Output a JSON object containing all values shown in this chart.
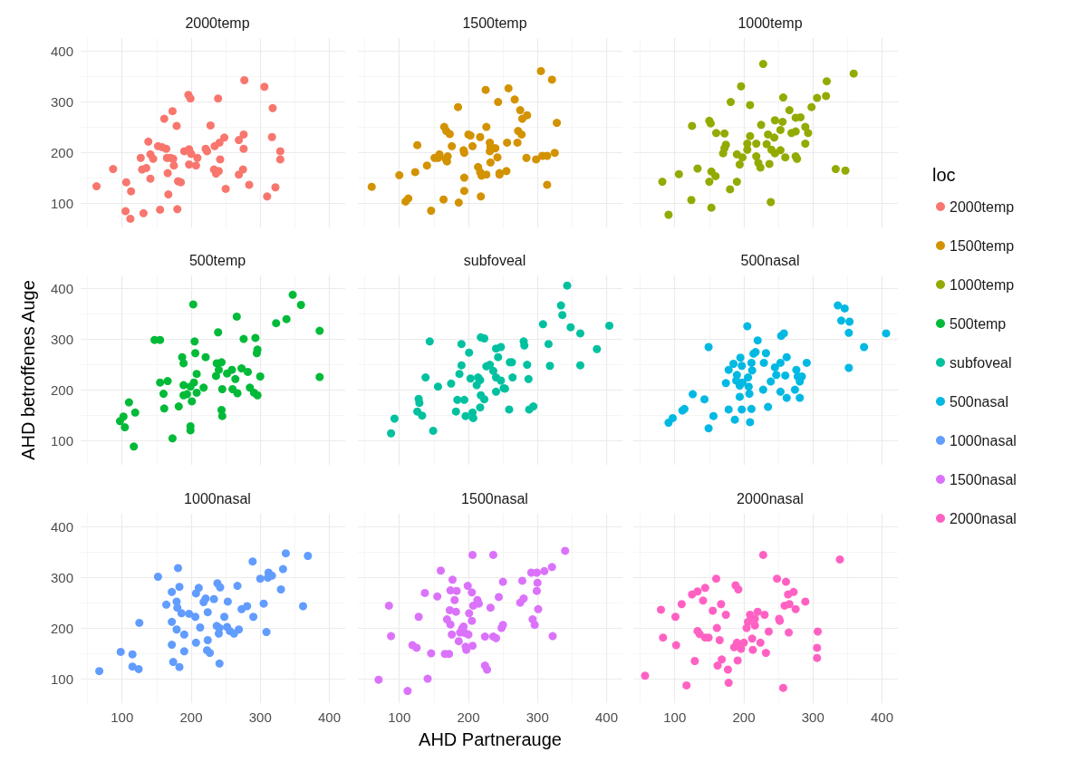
{
  "chart_data": [
    {
      "type": "scatter",
      "title": "2000temp",
      "xlim": [
        40,
        423
      ],
      "ylim": [
        52,
        425
      ],
      "xticks": [
        100,
        200,
        300,
        400
      ],
      "yticks": [
        100,
        200,
        300,
        400
      ],
      "grid": true,
      "marker": "circle",
      "legend": "right",
      "legend_title": "loc",
      "tick_labels": "y",
      "series": [
        {
          "name": "2000temp",
          "color": "#f8766d",
          "x": [
            63,
            87,
            106,
            113,
            105,
            112,
            131,
            155,
            180,
            138,
            127,
            141,
            145,
            129,
            135,
            141,
            152,
            158,
            164,
            161,
            173,
            179,
            165,
            170,
            174,
            175,
            166,
            167,
            181,
            185,
            196,
            199,
            190,
            197,
            200,
            197,
            207,
            209,
            221,
            223,
            234,
            241,
            248,
            228,
            239,
            233,
            236,
            240,
            242,
            250,
            269,
            275,
            269,
            276,
            276,
            277,
            284,
            306,
            310,
            317,
            318,
            322,
            329,
            329
          ],
          "values": [
            133,
            167,
            141,
            123,
            84,
            69,
            80,
            87,
            88,
            221,
            189,
            196,
            187,
            166,
            169,
            148,
            212,
            210,
            207,
            266,
            281,
            252,
            189,
            189,
            187,
            174,
            159,
            117,
            143,
            141,
            313,
            306,
            202,
            206,
            197,
            176,
            174,
            189,
            207,
            202,
            212,
            219,
            229,
            253,
            306,
            166,
            158,
            163,
            186,
            128,
            156,
            166,
            224,
            235,
            207,
            342,
            136,
            329,
            113,
            230,
            287,
            131,
            202,
            186
          ]
        }
      ]
    },
    {
      "type": "scatter",
      "title": "1500temp",
      "xlim": [
        40,
        423
      ],
      "ylim": [
        52,
        425
      ],
      "xticks": [
        100,
        200,
        300,
        400
      ],
      "yticks": [
        100,
        200,
        300,
        400
      ],
      "grid": true,
      "marker": "circle",
      "legend": "right",
      "tick_labels": false,
      "series": [
        {
          "name": "1500temp",
          "color": "#d39200",
          "x": [
            60,
            100,
            109,
            113,
            123,
            126,
            140,
            146,
            151,
            158,
            156,
            165,
            168,
            173,
            167,
            169,
            170,
            176,
            164,
            185,
            186,
            193,
            194,
            194,
            194,
            200,
            203,
            206,
            217,
            218,
            225,
            226,
            214,
            217,
            219,
            226,
            231,
            232,
            231,
            239,
            242,
            232,
            243,
            245,
            245,
            255,
            256,
            258,
            267,
            275,
            278,
            285,
            272,
            277,
            271,
            284,
            298,
            307,
            314,
            325,
            314,
            305,
            321,
            328
          ],
          "values": [
            132,
            155,
            103,
            109,
            161,
            214,
            174,
            85,
            189,
            196,
            189,
            250,
            242,
            236,
            187,
            182,
            192,
            212,
            107,
            289,
            101,
            204,
            199,
            150,
            124,
            235,
            233,
            212,
            230,
            113,
            323,
            250,
            171,
            161,
            154,
            156,
            219,
            210,
            202,
            208,
            190,
            180,
            299,
            159,
            156,
            163,
            219,
            326,
            304,
            283,
            266,
            273,
            242,
            235,
            219,
            189,
            186,
            193,
            193,
            199,
            136,
            360,
            343,
            258
          ]
        }
      ]
    },
    {
      "type": "scatter",
      "title": "1000temp",
      "xlim": [
        40,
        423
      ],
      "ylim": [
        52,
        425
      ],
      "xticks": [
        100,
        200,
        300,
        400
      ],
      "yticks": [
        100,
        200,
        300,
        400
      ],
      "grid": true,
      "marker": "circle",
      "legend": "right",
      "tick_labels": false,
      "series": [
        {
          "name": "1000temp",
          "color": "#93aa00",
          "x": [
            82,
            91,
            106,
            124,
            125,
            133,
            150,
            152,
            153,
            159,
            150,
            153,
            160,
            172,
            174,
            172,
            170,
            181,
            190,
            190,
            180,
            196,
            198,
            194,
            205,
            209,
            205,
            209,
            218,
            218,
            221,
            224,
            225,
            228,
            235,
            233,
            237,
            239,
            240,
            244,
            245,
            245,
            253,
            253,
            256,
            257,
            260,
            266,
            269,
            275,
            282,
            275,
            275,
            277,
            289,
            293,
            289,
            298,
            306,
            319,
            320,
            333,
            347,
            359
          ],
          "values": [
            142,
            77,
            157,
            106,
            252,
            168,
            262,
            257,
            162,
            153,
            142,
            91,
            238,
            237,
            215,
            208,
            198,
            299,
            196,
            142,
            127,
            330,
            190,
            176,
            217,
            232,
            205,
            293,
            217,
            192,
            179,
            170,
            254,
            374,
            235,
            216,
            177,
            102,
            205,
            229,
            263,
            198,
            244,
            204,
            260,
            308,
            190,
            283,
            238,
            268,
            269,
            241,
            192,
            187,
            250,
            238,
            217,
            289,
            307,
            311,
            340,
            167,
            164,
            355
          ]
        }
      ]
    },
    {
      "type": "scatter",
      "title": "500temp",
      "xlim": [
        40,
        423
      ],
      "ylim": [
        52,
        425
      ],
      "xticks": [
        100,
        200,
        300,
        400
      ],
      "yticks": [
        100,
        200,
        300,
        400
      ],
      "grid": true,
      "marker": "circle",
      "legend": "right",
      "ylabel": "AHD betroffenes Auge",
      "tick_labels": "y",
      "series": [
        {
          "name": "500temp",
          "color": "#00ba38",
          "x": [
            97,
            102,
            104,
            110,
            117,
            119,
            147,
            155,
            155,
            166,
            160,
            161,
            173,
            182,
            187,
            189,
            189,
            189,
            194,
            199,
            204,
            199,
            199,
            201,
            203,
            205,
            206,
            208,
            208,
            218,
            221,
            236,
            237,
            239,
            240,
            244,
            244,
            245,
            245,
            252,
            259,
            266,
            264,
            260,
            267,
            273,
            276,
            282,
            285,
            291,
            296,
            293,
            295,
            296,
            300,
            323,
            338,
            347,
            359,
            386,
            386
          ],
          "values": [
            138,
            147,
            126,
            175,
            88,
            155,
            298,
            298,
            214,
            217,
            192,
            163,
            104,
            167,
            264,
            252,
            209,
            189,
            191,
            206,
            214,
            128,
            120,
            177,
            368,
            295,
            272,
            231,
            194,
            204,
            264,
            227,
            252,
            313,
            239,
            254,
            160,
            148,
            201,
            232,
            239,
            344,
            221,
            201,
            193,
            242,
            300,
            235,
            204,
            194,
            189,
            302,
            272,
            279,
            226,
            331,
            339,
            387,
            367,
            316,
            225
          ]
        }
      ]
    },
    {
      "type": "scatter",
      "title": "subfoveal",
      "xlim": [
        40,
        423
      ],
      "ylim": [
        52,
        425
      ],
      "xticks": [
        100,
        200,
        300,
        400
      ],
      "yticks": [
        100,
        200,
        300,
        400
      ],
      "grid": true,
      "marker": "circle",
      "legend": "right",
      "tick_labels": false,
      "series": [
        {
          "name": "subfoveal",
          "color": "#00c19f",
          "x": [
            88,
            93,
            128,
            129,
            126,
            133,
            138,
            144,
            149,
            156,
            175,
            182,
            184,
            187,
            190,
            190,
            194,
            196,
            201,
            203,
            206,
            207,
            217,
            212,
            214,
            217,
            218,
            223,
            218,
            223,
            226,
            231,
            236,
            240,
            240,
            243,
            240,
            247,
            247,
            251,
            253,
            259,
            260,
            263,
            264,
            280,
            281,
            285,
            287,
            288,
            294,
            308,
            316,
            318,
            334,
            336,
            343,
            348,
            362,
            404,
            386,
            362
          ],
          "values": [
            114,
            143,
            182,
            174,
            157,
            149,
            224,
            295,
            119,
            206,
            212,
            157,
            180,
            231,
            290,
            248,
            180,
            148,
            273,
            222,
            155,
            144,
            165,
            209,
            224,
            219,
            189,
            181,
            303,
            301,
            246,
            249,
            237,
            224,
            281,
            264,
            196,
            218,
            284,
            203,
            202,
            161,
            254,
            254,
            224,
            295,
            287,
            249,
            221,
            161,
            167,
            329,
            290,
            247,
            366,
            347,
            405,
            323,
            311,
            326,
            280,
            248
          ]
        }
      ]
    },
    {
      "type": "scatter",
      "title": "500nasal",
      "xlim": [
        40,
        423
      ],
      "ylim": [
        52,
        425
      ],
      "xticks": [
        100,
        200,
        300,
        400
      ],
      "yticks": [
        100,
        200,
        300,
        400
      ],
      "grid": true,
      "marker": "circle",
      "legend": "right",
      "tick_labels": false,
      "series": [
        {
          "name": "500nasal",
          "color": "#00b9e3",
          "x": [
            91,
            97,
            111,
            114,
            126,
            143,
            156,
            149,
            149,
            174,
            178,
            185,
            190,
            189,
            195,
            197,
            194,
            194,
            198,
            178,
            187,
            197,
            205,
            206,
            207,
            208,
            211,
            209,
            211,
            212,
            214,
            217,
            220,
            229,
            228,
            232,
            235,
            239,
            245,
            247,
            253,
            254,
            258,
            262,
            253,
            260,
            262,
            274,
            276,
            278,
            281,
            281,
            284,
            291,
            336,
            346,
            341,
            353,
            352,
            374,
            352,
            406
          ],
          "values": [
            135,
            144,
            159,
            162,
            191,
            181,
            148,
            124,
            284,
            213,
            239,
            251,
            229,
            218,
            263,
            247,
            208,
            186,
            214,
            161,
            141,
            161,
            325,
            224,
            206,
            192,
            162,
            136,
            253,
            238,
            271,
            274,
            297,
            253,
            200,
            272,
            166,
            216,
            244,
            229,
            253,
            306,
            311,
            264,
            196,
            228,
            184,
            200,
            239,
            226,
            216,
            184,
            226,
            253,
            366,
            360,
            336,
            334,
            312,
            284,
            243,
            311
          ]
        }
      ]
    },
    {
      "type": "scatter",
      "title": "1000nasal",
      "xlim": [
        40,
        423
      ],
      "ylim": [
        52,
        425
      ],
      "xticks": [
        100,
        200,
        300,
        400
      ],
      "yticks": [
        100,
        200,
        300,
        400
      ],
      "grid": true,
      "marker": "circle",
      "legend": "right",
      "series": [
        {
          "name": "1000nasal",
          "color": "#619cff",
          "x": [
            67,
            98,
            115,
            115,
            124,
            125,
            152,
            164,
            172,
            172,
            172,
            174,
            181,
            179,
            183,
            180,
            179,
            183,
            186,
            190,
            190,
            197,
            206,
            207,
            211,
            213,
            207,
            218,
            221,
            223,
            224,
            224,
            227,
            233,
            238,
            242,
            237,
            240,
            241,
            241,
            248,
            253,
            252,
            256,
            262,
            267,
            269,
            273,
            281,
            290,
            289,
            300,
            305,
            309,
            312,
            311,
            317,
            330,
            333,
            337,
            362,
            369
          ],
          "values": [
            115,
            153,
            148,
            124,
            119,
            210,
            301,
            246,
            271,
            212,
            167,
            133,
            318,
            252,
            281,
            240,
            197,
            123,
            229,
            187,
            154,
            228,
            222,
            268,
            279,
            201,
            171,
            251,
            258,
            156,
            231,
            176,
            151,
            257,
            288,
            280,
            204,
            189,
            200,
            130,
            222,
            252,
            202,
            194,
            189,
            283,
            197,
            237,
            243,
            222,
            331,
            297,
            248,
            192,
            309,
            299,
            303,
            276,
            316,
            347,
            243,
            342
          ]
        }
      ]
    },
    {
      "type": "scatter",
      "title": "1500nasal",
      "xlim": [
        40,
        423
      ],
      "ylim": [
        52,
        425
      ],
      "xticks": [
        100,
        200,
        300,
        400
      ],
      "yticks": [
        100,
        200,
        300,
        400
      ],
      "grid": true,
      "marker": "circle",
      "legend": "right",
      "xlabel": "AHD Partnerauge",
      "tick_labels": "x",
      "series": [
        {
          "name": "1500nasal",
          "color": "#db72fb",
          "x": [
            70,
            85,
            88,
            112,
            119,
            125,
            128,
            137,
            141,
            146,
            155,
            160,
            166,
            172,
            169,
            173,
            174,
            177,
            174,
            176,
            180,
            183,
            182,
            186,
            188,
            191,
            193,
            195,
            196,
            197,
            200,
            201,
            199,
            205,
            206,
            205,
            206,
            207,
            213,
            215,
            224,
            227,
            224,
            232,
            236,
            236,
            240,
            244,
            248,
            250,
            250,
            275,
            280,
            278,
            293,
            296,
            291,
            299,
            299,
            300,
            301,
            310,
            321,
            322,
            340
          ],
          "values": [
            98,
            244,
            184,
            76,
            166,
            161,
            222,
            269,
            100,
            150,
            262,
            313,
            149,
            149,
            217,
            235,
            274,
            295,
            207,
            187,
            255,
            273,
            232,
            174,
            191,
            199,
            203,
            190,
            163,
            157,
            187,
            229,
            283,
            270,
            344,
            214,
            165,
            244,
            255,
            248,
            126,
            118,
            183,
            240,
            183,
            344,
            180,
            261,
            200,
            206,
            291,
            250,
            258,
            293,
            217,
            206,
            309,
            309,
            273,
            289,
            237,
            312,
            320,
            184,
            352
          ]
        }
      ]
    },
    {
      "type": "scatter",
      "title": "2000nasal",
      "xlim": [
        40,
        423
      ],
      "ylim": [
        52,
        425
      ],
      "xticks": [
        100,
        200,
        300,
        400
      ],
      "yticks": [
        100,
        200,
        300,
        400
      ],
      "grid": true,
      "marker": "circle",
      "legend": "right",
      "tick_labels": "x",
      "series": [
        {
          "name": "2000nasal",
          "color": "#ff61c3",
          "x": [
            57,
            80,
            83,
            101,
            102,
            110,
            117,
            125,
            129,
            133,
            133,
            136,
            141,
            144,
            144,
            149,
            155,
            160,
            161,
            162,
            165,
            167,
            168,
            174,
            177,
            178,
            188,
            191,
            192,
            186,
            190,
            196,
            200,
            204,
            206,
            209,
            212,
            213,
            216,
            220,
            216,
            224,
            228,
            230,
            232,
            236,
            248,
            251,
            252,
            257,
            261,
            264,
            265,
            259,
            266,
            272,
            275,
            289,
            306,
            306,
            307,
            339
          ],
          "values": [
            106,
            236,
            181,
            222,
            166,
            247,
            87,
            266,
            135,
            272,
            194,
            188,
            254,
            279,
            181,
            181,
            234,
            297,
            200,
            126,
            176,
            247,
            138,
            226,
            118,
            92,
            284,
            136,
            276,
            162,
            171,
            159,
            171,
            200,
            212,
            226,
            179,
            157,
            205,
            232,
            218,
            171,
            344,
            226,
            151,
            193,
            297,
            218,
            214,
            82,
            291,
            266,
            191,
            244,
            247,
            271,
            237,
            252,
            161,
            141,
            193,
            335
          ]
        }
      ]
    }
  ]
}
